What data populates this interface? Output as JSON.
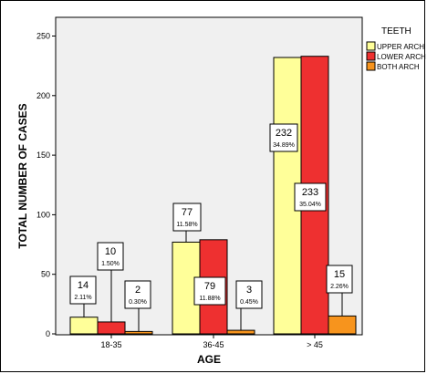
{
  "chart_data": {
    "type": "bar",
    "xlabel": "AGE",
    "ylabel": "TOTAL NUMBER OF CASES",
    "ylim": [
      0,
      260
    ],
    "yticks": [
      0,
      50,
      100,
      150,
      200,
      250
    ],
    "categories": [
      "18-35",
      "36-45",
      "> 45"
    ],
    "legend_title": "TEETH",
    "legend_position": "right",
    "series": [
      {
        "name": "UPPER ARCH",
        "color": "#ffff99",
        "values": [
          14,
          77,
          232
        ],
        "labels": [
          "14",
          "77",
          "232"
        ],
        "pcts": [
          "2.11%",
          "11.58%",
          "34.89%"
        ]
      },
      {
        "name": "LOWER ARCH",
        "color": "#ee3030",
        "values": [
          10,
          79,
          233
        ],
        "labels": [
          "10",
          "79",
          "233"
        ],
        "pcts": [
          "1.50%",
          "11.88%",
          "35.04%"
        ]
      },
      {
        "name": "BOTH ARCH",
        "color": "#f7941d",
        "values": [
          2,
          3,
          15
        ],
        "labels": [
          "2",
          "3",
          "15"
        ],
        "pcts": [
          "0.30%",
          "0.45%",
          "2.26%"
        ]
      }
    ]
  }
}
